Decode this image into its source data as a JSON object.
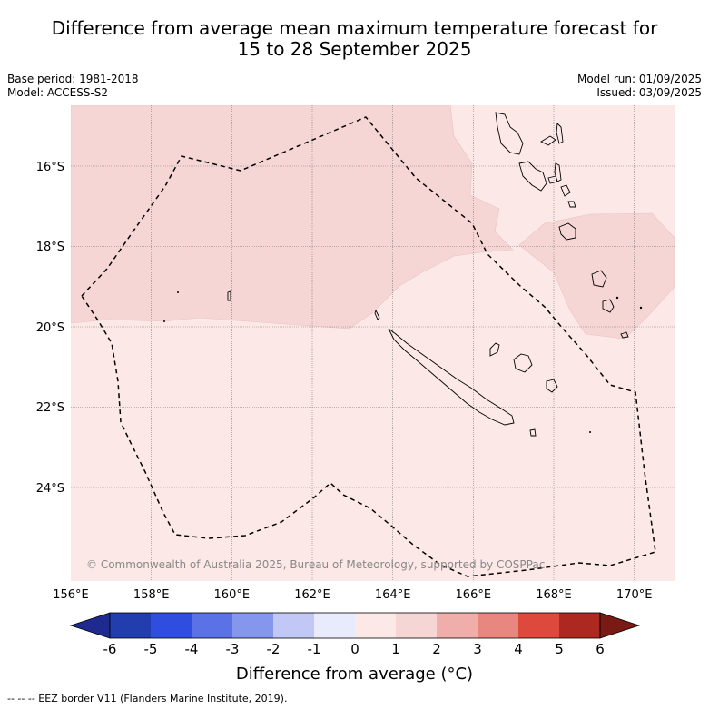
{
  "title": {
    "line1": "Difference from average mean maximum temperature forecast for",
    "line2": "15 to 28 September 2025"
  },
  "meta": {
    "base_period": "Base period: 1981-2018",
    "model": "Model: ACCESS-S2",
    "model_run": "Model run: 01/09/2025",
    "issued": "Issued: 03/09/2025"
  },
  "map": {
    "lon_range": [
      156,
      171
    ],
    "lat_range": [
      -26.3,
      -14.5
    ],
    "lon_ticks": [
      156,
      158,
      160,
      162,
      164,
      166,
      168,
      170
    ],
    "lon_tick_labels": [
      "156°E",
      "158°E",
      "160°E",
      "162°E",
      "164°E",
      "166°E",
      "168°E",
      "170°E"
    ],
    "lat_ticks": [
      -16,
      -18,
      -20,
      -22,
      -24
    ],
    "lat_tick_labels": [
      "16°S",
      "18°S",
      "20°S",
      "22°S",
      "24°S"
    ],
    "grid": true,
    "copyright": "© Commonwealth of Australia 2025, Bureau of Meteorology, supported by COSPPac",
    "colors": {
      "anomaly_0_1": "#fce9e7",
      "anomaly_1_2": "#f5d6d5",
      "eez_line": "#000000",
      "grid": "#808080"
    },
    "features": [
      "New Caledonia",
      "Loyalty Islands",
      "Vanuatu",
      "Chesterfield Islands"
    ]
  },
  "colorbar": {
    "title": "Difference from average (°C)",
    "tick_labels": [
      "-6",
      "-5",
      "-4",
      "-3",
      "-2",
      "-1",
      "0",
      "1",
      "2",
      "3",
      "4",
      "5",
      "6"
    ],
    "colors": [
      "#1e2a8f",
      "#223dae",
      "#2f4ee0",
      "#5a72e6",
      "#8497ec",
      "#c1c8f5",
      "#e8ebfc",
      "#fce9e7",
      "#f5d6d5",
      "#f0aeab",
      "#e88780",
      "#dd4a3d",
      "#ad2820",
      "#7a1a14"
    ]
  },
  "footer": {
    "legend": "--  --  -- EEZ border V11 (Flanders Marine Institute, 2019)."
  }
}
